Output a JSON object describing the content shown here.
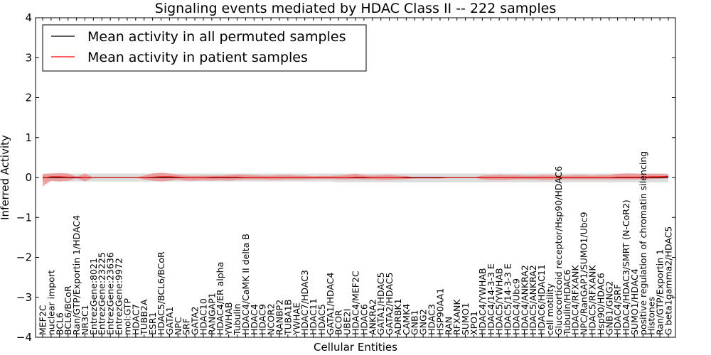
{
  "chart_data": {
    "type": "line",
    "title": "Signaling events mediated by HDAC Class II -- 222 samples",
    "xlabel": "Cellular Entities",
    "ylabel": "Inferred Activity",
    "ylim": [
      -4,
      4
    ],
    "yticks": [
      4,
      3,
      2,
      1,
      0,
      -1,
      -2,
      -3,
      -4
    ],
    "ytick_labels": [
      "4",
      "3",
      "2",
      "1",
      "0",
      "−1",
      "−2",
      "−3",
      "−4"
    ],
    "legend_position": "top-left",
    "categories": [
      "MEF2C",
      "nuclear import",
      "BCL6",
      "BCL6/BCoR",
      "Ran/GTP/Exportin 1/HDAC4",
      "NR3C1",
      "EntrezGene:8021",
      "EntrezGene:23225",
      "EntrezGene:23636",
      "EntrezGene:9972",
      "mol:GTP",
      "HDAC7",
      "TUBB2A",
      "ESR1",
      "HDAC5/BCL6/BCoR",
      "GATA1",
      "NPC",
      "SRF",
      "GATA2",
      "HDAC10",
      "RANGAP1",
      "HDAC4/ER alpha",
      "YWHAB",
      "Tubulin",
      "HDAC4/CaMK II delta B",
      "HDAC4",
      "HDAC9",
      "NCOR2",
      "RANBP2",
      "TUBA1B",
      "YWHAE",
      "HDAC7/HDAC3",
      "HDAC11",
      "HDAC5",
      "GATA1/HDAC4",
      "BCOR",
      "UBE2I",
      "HDAC4/MEF2C",
      "HDAC6",
      "ANKRA2",
      "GATA1/HDAC5",
      "GATA2/HDAC5",
      "ADRBK1",
      "CAMK4",
      "GNB1",
      "GNG2",
      "HDAC3",
      "HSP90AA1",
      "RAN",
      "RFXANK",
      "SUMO1",
      "XPO1",
      "HDAC4/YWHAB",
      "HDAC4/14-3-3 E",
      "HDAC5/YWHAB",
      "HDAC5/14-3-3 E",
      "HDAC4/Ubc9",
      "HDAC4/ANKRA2",
      "HDAC5/ANKRA2",
      "HDAC6/HDAC11",
      "cell motility",
      "Glucocorticoid receptor/Hsp90/HDAC6",
      "Tubulin/HDAC6",
      "HDAC4/RFXANK",
      "NPC/RanGAP1/SUMO1/Ubc9",
      "HDAC5/RFXANK",
      "Hsp90/HDAC6",
      "GNB1/GNG2",
      "HDAC4/SRF",
      "HDAC4/HDAC3/SMRT (N-CoR2)",
      "SUMO1/HDAC4",
      "positive regulation of chromatin silencing",
      "Histones",
      "Ran/GTP/Exportin 1",
      "G beta1gamma2/HDAC5"
    ],
    "series": [
      {
        "name": "Mean activity in all permuted samples",
        "color": "#000000",
        "band_color": "#bbbbbb",
        "values": [
          0.0,
          0.0,
          0.0,
          0.0,
          0.0,
          0.0,
          0.0,
          0.0,
          0.0,
          0.0,
          0.0,
          0.0,
          0.0,
          0.0,
          0.0,
          0.0,
          0.0,
          0.0,
          0.0,
          0.0,
          0.0,
          0.0,
          0.0,
          0.0,
          0.0,
          0.0,
          0.0,
          0.0,
          0.0,
          0.0,
          0.0,
          0.0,
          0.0,
          0.0,
          0.0,
          0.0,
          0.0,
          0.0,
          0.0,
          0.0,
          0.0,
          0.0,
          0.0,
          0.0,
          0.0,
          0.0,
          0.0,
          0.0,
          0.0,
          0.0,
          0.0,
          0.0,
          0.0,
          0.0,
          0.0,
          0.0,
          0.0,
          0.0,
          0.0,
          0.0,
          0.0,
          0.0,
          0.0,
          0.0,
          0.0,
          0.0,
          0.0,
          0.0,
          0.0,
          0.0,
          0.0,
          0.0,
          0.0,
          0.0,
          0.0
        ],
        "upper": [
          0.1,
          0.1,
          0.1,
          0.1,
          0.1,
          0.1,
          0.1,
          0.1,
          0.1,
          0.1,
          0.1,
          0.1,
          0.1,
          0.1,
          0.1,
          0.1,
          0.1,
          0.1,
          0.1,
          0.1,
          0.1,
          0.1,
          0.1,
          0.1,
          0.1,
          0.1,
          0.1,
          0.1,
          0.1,
          0.1,
          0.1,
          0.1,
          0.1,
          0.1,
          0.1,
          0.1,
          0.1,
          0.1,
          0.1,
          0.1,
          0.1,
          0.1,
          0.1,
          0.1,
          0.1,
          0.1,
          0.1,
          0.1,
          0.1,
          0.1,
          0.1,
          0.1,
          0.1,
          0.1,
          0.1,
          0.1,
          0.1,
          0.1,
          0.1,
          0.1,
          0.1,
          0.1,
          0.1,
          0.1,
          0.1,
          0.1,
          0.1,
          0.1,
          0.1,
          0.1,
          0.1,
          0.1,
          0.1,
          0.1,
          0.1
        ],
        "lower": [
          -0.1,
          -0.1,
          -0.1,
          -0.1,
          -0.1,
          -0.1,
          -0.1,
          -0.1,
          -0.1,
          -0.1,
          -0.1,
          -0.1,
          -0.1,
          -0.1,
          -0.1,
          -0.1,
          -0.1,
          -0.1,
          -0.1,
          -0.1,
          -0.1,
          -0.1,
          -0.1,
          -0.1,
          -0.1,
          -0.1,
          -0.1,
          -0.1,
          -0.1,
          -0.1,
          -0.1,
          -0.1,
          -0.1,
          -0.1,
          -0.1,
          -0.12,
          -0.12,
          -0.12,
          -0.12,
          -0.12,
          -0.12,
          -0.12,
          -0.12,
          -0.12,
          -0.12,
          -0.12,
          -0.12,
          -0.12,
          -0.12,
          -0.12,
          -0.12,
          -0.12,
          -0.12,
          -0.12,
          -0.12,
          -0.12,
          -0.12,
          -0.12,
          -0.12,
          -0.12,
          -0.12,
          -0.12,
          -0.12,
          -0.12,
          -0.12,
          -0.12,
          -0.12,
          -0.12,
          -0.12,
          -0.12,
          -0.12,
          -0.12,
          -0.12,
          -0.12,
          -0.12
        ]
      },
      {
        "name": "Mean activity in patient samples",
        "color": "#ff0000",
        "band_color": "#f08080",
        "values": [
          -0.01,
          0.02,
          0.02,
          0.01,
          0.01,
          0.0,
          0.0,
          0.0,
          0.0,
          0.0,
          0.0,
          0.0,
          0.0,
          0.01,
          0.02,
          0.02,
          0.01,
          0.0,
          0.0,
          0.0,
          0.01,
          0.01,
          0.01,
          0.01,
          0.0,
          0.0,
          0.0,
          0.0,
          0.0,
          0.0,
          0.0,
          0.0,
          0.0,
          0.0,
          0.0,
          0.0,
          0.0,
          0.01,
          0.01,
          0.0,
          0.0,
          0.0,
          0.0,
          -0.01,
          -0.01,
          -0.01,
          -0.01,
          -0.01,
          0.0,
          0.0,
          0.0,
          0.0,
          0.0,
          0.0,
          0.0,
          0.0,
          0.0,
          0.0,
          0.0,
          0.0,
          0.0,
          0.0,
          0.0,
          0.0,
          0.0,
          0.0,
          0.0,
          0.0,
          0.01,
          0.01,
          0.01,
          0.01,
          0.02,
          0.02,
          0.03
        ],
        "upper": [
          0.08,
          0.1,
          0.11,
          0.1,
          0.02,
          0.1,
          0.0,
          0.0,
          0.0,
          0.0,
          0.0,
          0.0,
          0.05,
          0.1,
          0.12,
          0.1,
          0.07,
          0.05,
          0.04,
          0.05,
          0.05,
          0.05,
          0.06,
          0.08,
          0.07,
          0.06,
          0.05,
          0.05,
          0.06,
          0.06,
          0.05,
          0.05,
          0.03,
          0.04,
          0.04,
          0.05,
          0.07,
          0.09,
          0.06,
          0.05,
          0.06,
          0.07,
          0.05,
          0.04,
          0.0,
          -0.01,
          0.0,
          0.0,
          0.0,
          0.0,
          0.0,
          0.0,
          0.05,
          0.06,
          0.07,
          0.06,
          0.06,
          0.05,
          0.05,
          0.06,
          0.06,
          0.05,
          0.05,
          0.06,
          0.06,
          0.05,
          0.06,
          0.06,
          0.09,
          0.1,
          0.1,
          0.09,
          0.09,
          0.09,
          0.08
        ],
        "lower": [
          -0.22,
          -0.08,
          -0.1,
          -0.08,
          -0.02,
          -0.1,
          0.0,
          0.0,
          0.0,
          0.0,
          0.0,
          0.0,
          -0.05,
          -0.08,
          -0.1,
          -0.08,
          -0.05,
          -0.08,
          -0.08,
          -0.07,
          -0.08,
          -0.07,
          -0.08,
          -0.06,
          -0.05,
          -0.05,
          -0.05,
          -0.06,
          -0.06,
          -0.05,
          -0.05,
          -0.05,
          -0.04,
          -0.04,
          -0.04,
          -0.05,
          -0.05,
          -0.04,
          -0.05,
          -0.05,
          -0.06,
          -0.06,
          -0.05,
          -0.04,
          -0.02,
          -0.01,
          -0.02,
          -0.02,
          0.0,
          0.0,
          0.0,
          0.0,
          -0.05,
          -0.06,
          -0.06,
          -0.06,
          -0.05,
          -0.05,
          -0.05,
          -0.06,
          -0.06,
          -0.05,
          -0.05,
          -0.05,
          -0.05,
          -0.05,
          -0.05,
          -0.05,
          -0.05,
          -0.05,
          -0.05,
          -0.05,
          -0.04,
          -0.03,
          -0.02
        ]
      }
    ]
  }
}
